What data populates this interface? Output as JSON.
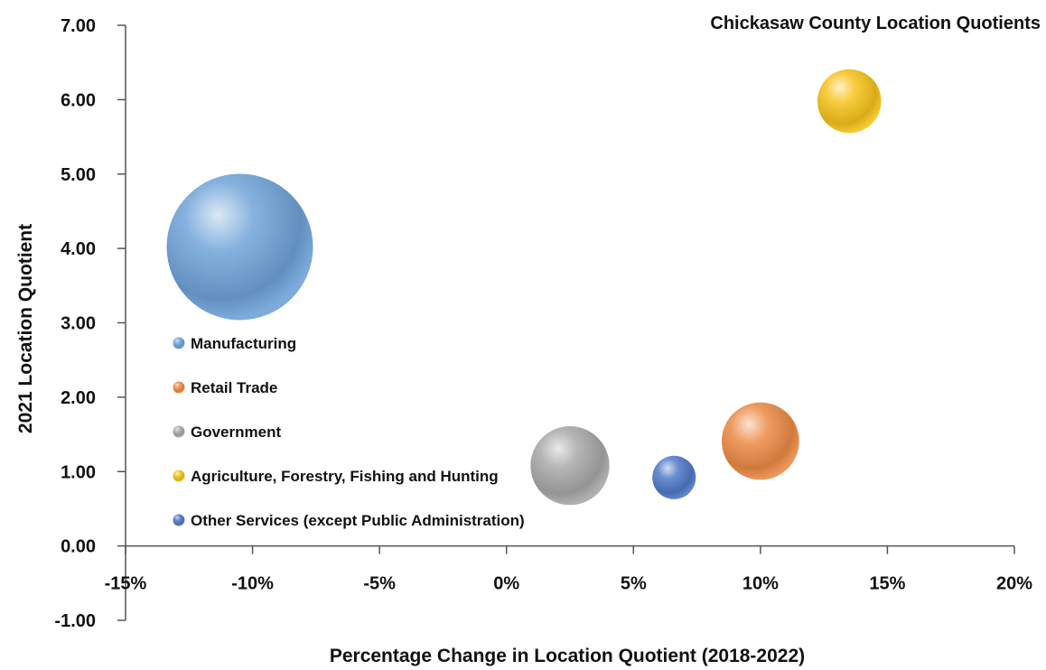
{
  "chart_data": {
    "type": "bubble",
    "title": "Chickasaw County Location Quotients",
    "xlabel": "Percentage Change in Location Quotient (2018-2022)",
    "ylabel": "2021 Location Quotient",
    "xlim": [
      -0.15,
      0.2
    ],
    "ylim": [
      -1.0,
      7.0
    ],
    "x_ticks": [
      "-15%",
      "-10%",
      "-5%",
      "0%",
      "5%",
      "10%",
      "15%",
      "20%"
    ],
    "x_tick_values": [
      -0.15,
      -0.1,
      -0.05,
      0,
      0.05,
      0.1,
      0.15,
      0.2
    ],
    "y_ticks": [
      "-1.00",
      "0.00",
      "1.00",
      "2.00",
      "3.00",
      "4.00",
      "5.00",
      "6.00",
      "7.00"
    ],
    "y_tick_values": [
      -1,
      0,
      1,
      2,
      3,
      4,
      5,
      6,
      7
    ],
    "legend_position": "left",
    "series": [
      {
        "name": "Manufacturing",
        "x": -0.105,
        "y": 4.02,
        "size": 1,
        "color": "#6fa3d8"
      },
      {
        "name": "Retail Trade",
        "x": 0.1,
        "y": 1.41,
        "size": 0.28,
        "color": "#ec8a45"
      },
      {
        "name": "Government",
        "x": 0.025,
        "y": 1.08,
        "size": 0.29,
        "color": "#a8a8a8"
      },
      {
        "name": "Agriculture, Forestry, Fishing and Hunting",
        "x": 0.135,
        "y": 5.98,
        "size": 0.19,
        "color": "#f5c21b"
      },
      {
        "name": "Other Services (except Public Administration)",
        "x": 0.066,
        "y": 0.92,
        "size": 0.088,
        "color": "#4f79c8"
      }
    ]
  }
}
